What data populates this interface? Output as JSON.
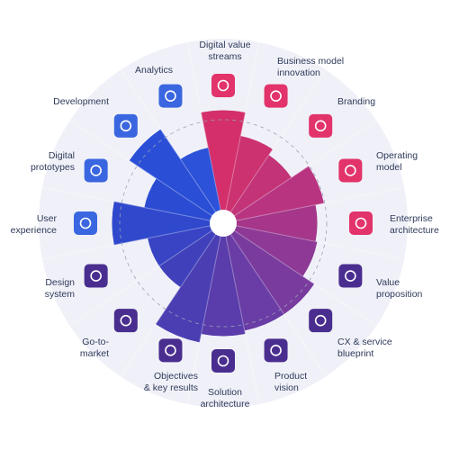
{
  "chart_data": {
    "type": "polar",
    "categories": [
      [
        "Digital value",
        "streams"
      ],
      [
        "Business model",
        "innovation"
      ],
      [
        "Branding"
      ],
      [
        "Operating",
        "model"
      ],
      [
        "Enterprise",
        "architecture"
      ],
      [
        "Value",
        "proposition"
      ],
      [
        "CX & service",
        "blueprint"
      ],
      [
        "Product",
        "vision"
      ],
      [
        "Solution",
        "architecture"
      ],
      [
        "Objectives",
        "& key results"
      ],
      [
        "Go-to-",
        "market"
      ],
      [
        "Design",
        "system"
      ],
      [
        "User",
        "experience"
      ],
      [
        "Digital",
        "prototypes"
      ],
      [
        "Development"
      ],
      [
        "Analytics"
      ]
    ],
    "values": [
      58,
      44,
      40,
      52,
      47,
      48,
      56,
      56,
      58,
      63,
      37,
      37,
      57,
      39,
      58,
      37
    ],
    "colors": [
      "#d42f6a",
      "#cc3170",
      "#c33377",
      "#b93480",
      "#a5368a",
      "#8e3995",
      "#7a3b9e",
      "#6a3ca5",
      "#5a3dab",
      "#4b3eb3",
      "#4040bb",
      "#3844c4",
      "#2f48cc",
      "#2b4cd2",
      "#2a4fd6",
      "#2b52d8"
    ],
    "ylim": [
      0,
      100
    ]
  }
}
